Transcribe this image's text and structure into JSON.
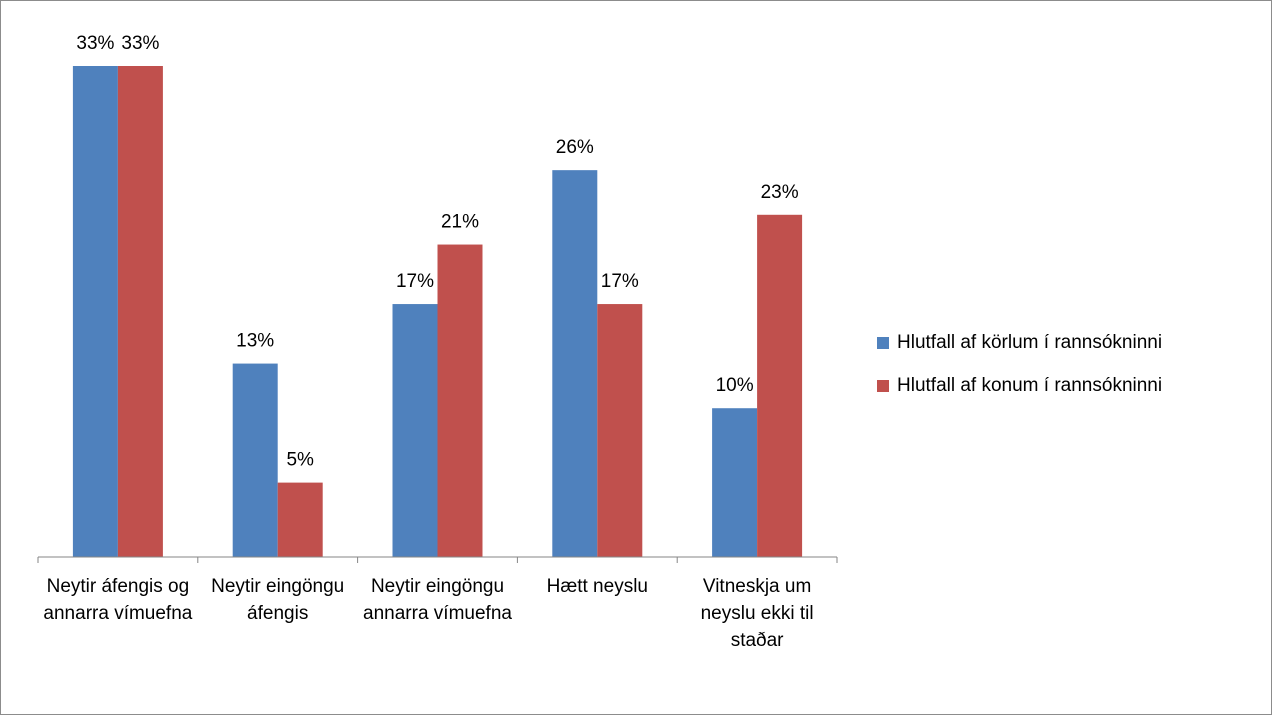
{
  "chart_data": {
    "type": "bar",
    "categories": [
      "Neytir áfengis og annarra vímuefna",
      "Neytir eingöngu áfengis",
      "Neytir eingöngu annarra vímuefna",
      "Hætt neyslu",
      "Vitneskja um neyslu ekki til staðar"
    ],
    "series": [
      {
        "name": "Hlutfall af körlum í rannsókninni",
        "color": "#4f81bd",
        "values": [
          33,
          13,
          17,
          26,
          10
        ],
        "value_labels": [
          "33%",
          "13%",
          "17%",
          "26%",
          "10%"
        ]
      },
      {
        "name": "Hlutfall af konum í rannsókninni",
        "color": "#c0504d",
        "values": [
          33,
          5,
          21,
          17,
          23
        ],
        "value_labels": [
          "33%",
          "5%",
          "21%",
          "17%",
          "23%"
        ]
      }
    ],
    "legend": "right"
  }
}
